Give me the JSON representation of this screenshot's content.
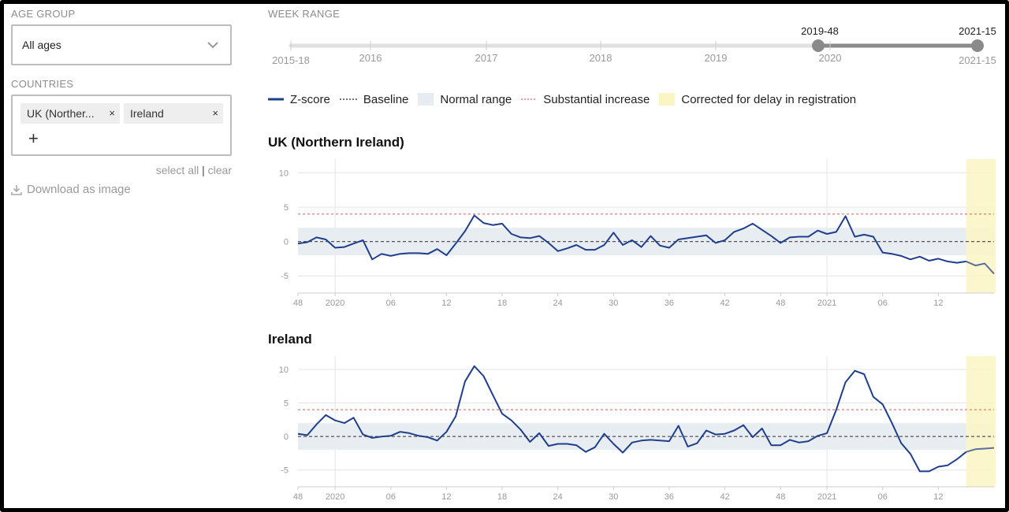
{
  "sidebar": {
    "age_group_label": "AGE GROUP",
    "age_group_value": "All ages",
    "countries_label": "COUNTRIES",
    "chips": [
      {
        "label": "UK (Norther..."
      },
      {
        "label": "Ireland"
      }
    ],
    "chip_close": "×",
    "add_label": "+",
    "select_all": "select all",
    "separator": "|",
    "clear": "clear",
    "download": "Download as image"
  },
  "week_range": {
    "label": "WEEK RANGE",
    "years": [
      "2015-18",
      "2016",
      "2017",
      "2018",
      "2019",
      "2020",
      "2021-15"
    ],
    "selected_start": "2019-48",
    "selected_end": "2021-15"
  },
  "legend": {
    "zscore": "Z-score",
    "baseline": "Baseline",
    "normal_range": "Normal range",
    "substantial": "Substantial increase",
    "corrected": "Corrected for delay in registration"
  },
  "colors": {
    "line": "#1f3f8c",
    "normal_band": "#e8edf2",
    "substantial": "#e07b7b",
    "corrected": "#fbf5c4",
    "grid": "#e4e4e4"
  },
  "chart_data": [
    {
      "type": "line",
      "title": "UK (Northern Ireland)",
      "xlabel": "",
      "ylabel": "",
      "x_tick_labels": [
        "48",
        "2020",
        "06",
        "12",
        "18",
        "24",
        "30",
        "36",
        "42",
        "48",
        "2021",
        "06",
        "12"
      ],
      "y_ticks": [
        10,
        5,
        0,
        -5
      ],
      "ylim": [
        -7.5,
        12
      ],
      "baseline": 0,
      "normal_range": [
        -2,
        2
      ],
      "substantial_increase": 4,
      "corrected_from_index": 72,
      "series": [
        {
          "values": [
            -0.3,
            -0.1,
            0.6,
            0.3,
            -0.9,
            -0.8,
            -0.3,
            0.2,
            -2.6,
            -1.8,
            -2.1,
            -1.8,
            -1.7,
            -1.7,
            -1.8,
            -1.1,
            -2.0,
            -0.3,
            1.5,
            3.8,
            2.7,
            2.4,
            2.6,
            1.1,
            0.6,
            0.5,
            0.8,
            -0.2,
            -1.4,
            -1.0,
            -0.5,
            -1.2,
            -1.2,
            -0.5,
            1.3,
            -0.5,
            0.2,
            -0.8,
            0.8,
            -0.6,
            -0.9,
            0.3,
            0.5,
            0.7,
            0.9,
            -0.2,
            0.2,
            1.4,
            1.9,
            2.6,
            1.7,
            0.8,
            -0.2,
            0.6,
            0.7,
            0.7,
            1.6,
            1.1,
            1.4,
            3.7,
            0.7,
            1.0,
            0.7,
            -1.6,
            -1.8,
            -2.1,
            -2.6,
            -2.2,
            -2.8,
            -2.5,
            -2.9,
            -3.1,
            -2.9,
            -3.5,
            -3.2,
            -4.7
          ]
        }
      ]
    },
    {
      "type": "line",
      "title": "Ireland",
      "xlabel": "",
      "ylabel": "",
      "x_tick_labels": [
        "48",
        "2020",
        "06",
        "12",
        "18",
        "24",
        "30",
        "36",
        "42",
        "48",
        "2021",
        "06",
        "12"
      ],
      "y_ticks": [
        10,
        5,
        0,
        -5
      ],
      "ylim": [
        -7.5,
        12
      ],
      "baseline": 0,
      "normal_range": [
        -2,
        2
      ],
      "substantial_increase": 4,
      "corrected_from_index": 72,
      "series": [
        {
          "values": [
            0.4,
            0.2,
            1.8,
            3.2,
            2.4,
            2.0,
            2.8,
            0.3,
            -0.2,
            0.0,
            0.1,
            0.7,
            0.5,
            0.1,
            -0.1,
            -0.6,
            0.7,
            3.0,
            8.2,
            10.5,
            9.0,
            6.2,
            3.4,
            2.4,
            1.0,
            -0.8,
            0.5,
            -1.4,
            -1.1,
            -1.1,
            -1.3,
            -2.3,
            -1.6,
            0.4,
            -1.1,
            -2.4,
            -0.9,
            -0.6,
            -0.5,
            -0.6,
            -0.7,
            1.6,
            -1.5,
            -1.0,
            0.9,
            0.3,
            0.4,
            0.9,
            1.7,
            -0.1,
            1.2,
            -1.3,
            -1.3,
            -0.5,
            -0.9,
            -0.7,
            0.1,
            0.5,
            4.0,
            8.1,
            9.8,
            9.3,
            5.9,
            4.8,
            2.0,
            -1.0,
            -2.6,
            -5.2,
            -5.2,
            -4.5,
            -4.3,
            -3.4,
            -2.3,
            -1.9,
            -1.8,
            -1.7
          ]
        }
      ]
    }
  ]
}
